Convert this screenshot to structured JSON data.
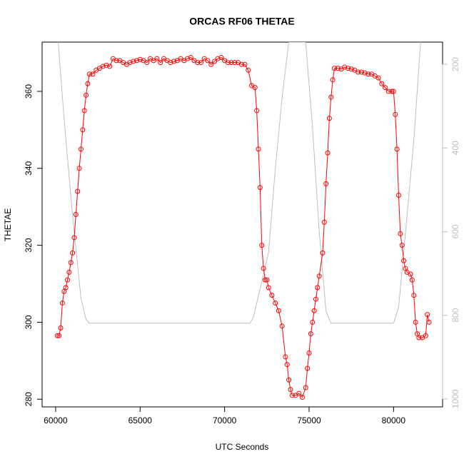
{
  "chart_data": {
    "type": "line",
    "title": "ORCAS RF06 THETAE",
    "x_label": "UTC Seconds",
    "y_label": "THETAE",
    "xlim": [
      59200,
      82900
    ],
    "xticks": [
      60000,
      65000,
      70000,
      75000,
      80000
    ],
    "ylim": [
      278,
      372.8
    ],
    "yticks": [
      280,
      300,
      320,
      340,
      360
    ],
    "y2lim": [
      1019,
      147
    ],
    "y2ticks": [
      200,
      400,
      600,
      800,
      1000
    ],
    "series": [
      {
        "color": "#ff0000",
        "markers": true,
        "x": [
          60100,
          60200,
          60300,
          60400,
          60500,
          60600,
          60700,
          60800,
          60900,
          61000,
          61100,
          61200,
          61300,
          61400,
          61500,
          61600,
          61700,
          61800,
          61900,
          62000,
          62200,
          62400,
          62600,
          62800,
          63000,
          63200,
          63400,
          63600,
          63800,
          64000,
          64200,
          64400,
          64600,
          64800,
          65000,
          65200,
          65400,
          65600,
          65800,
          66000,
          66200,
          66400,
          66600,
          66800,
          67000,
          67200,
          67400,
          67600,
          67800,
          68000,
          68200,
          68400,
          68600,
          68800,
          69000,
          69200,
          69400,
          69600,
          69800,
          70000,
          70200,
          70400,
          70600,
          70800,
          71000,
          71200,
          71400,
          71600,
          71800,
          71900,
          72000,
          72100,
          72200,
          72300,
          72400,
          72500,
          72600,
          72800,
          73000,
          73200,
          73400,
          73600,
          73700,
          73800,
          73900,
          74000,
          74200,
          74400,
          74600,
          74800,
          74900,
          75000,
          75100,
          75200,
          75300,
          75400,
          75500,
          75600,
          75800,
          75900,
          76000,
          76100,
          76200,
          76300,
          76400,
          76500,
          76700,
          76900,
          77100,
          77300,
          77500,
          77700,
          77900,
          78100,
          78300,
          78500,
          78700,
          78900,
          79100,
          79300,
          79500,
          79700,
          79900,
          80000,
          80100,
          80200,
          80300,
          80400,
          80500,
          80600,
          80700,
          80800,
          81000,
          81100,
          81200,
          81300,
          81400,
          81500,
          81700,
          81900,
          82000,
          82100
        ],
        "values": [
          296.5,
          296.5,
          298.5,
          305,
          308,
          309,
          311,
          313,
          315.5,
          318,
          322,
          328,
          334,
          340,
          345,
          350,
          355,
          359,
          362,
          364.5,
          364.5,
          365.5,
          366,
          366.5,
          366.8,
          366.5,
          368.5,
          368,
          368,
          367.5,
          367,
          367.5,
          367.8,
          368,
          368.3,
          368,
          367.5,
          368.5,
          368,
          368.5,
          367.5,
          368.5,
          368,
          367.5,
          367.8,
          368,
          368.5,
          368,
          368.5,
          368.8,
          368,
          367.5,
          367.5,
          368.5,
          368,
          367,
          367.8,
          368.5,
          368.8,
          368,
          367.5,
          367.5,
          367.5,
          367.5,
          367,
          367,
          365.5,
          361.5,
          361,
          355,
          345,
          335,
          320,
          314,
          311,
          311,
          309,
          307,
          305,
          303,
          299,
          291,
          289,
          285,
          282.5,
          281,
          281,
          281.5,
          280.5,
          283,
          288,
          292,
          297,
          300,
          303,
          306,
          309,
          312,
          318,
          326,
          336,
          344,
          353,
          358.5,
          363,
          366,
          366,
          365.8,
          366.3,
          366,
          365.8,
          365.5,
          365,
          365,
          364.8,
          364.5,
          364.5,
          364,
          363.5,
          362,
          361,
          360,
          360,
          360,
          354,
          345,
          333,
          323,
          320,
          316,
          314,
          313,
          312.5,
          311,
          307,
          300,
          297,
          296,
          296,
          296.5,
          302,
          300
        ]
      },
      {
        "color": "#bebebe",
        "markers": false,
        "axis": "y2",
        "x": [
          60150,
          60500,
          61000,
          61500,
          61800,
          62000,
          71500,
          71700,
          72200,
          72600,
          73000,
          73400,
          73800,
          74800,
          75200,
          75600,
          76000,
          76300,
          80000,
          80300,
          80800,
          81200,
          81600
        ],
        "values": [
          147,
          330,
          560,
          760,
          810,
          819,
          819,
          805,
          720,
          650,
          450,
          280,
          147,
          147,
          350,
          600,
          790,
          819,
          819,
          780,
          560,
          380,
          147
        ]
      }
    ]
  }
}
